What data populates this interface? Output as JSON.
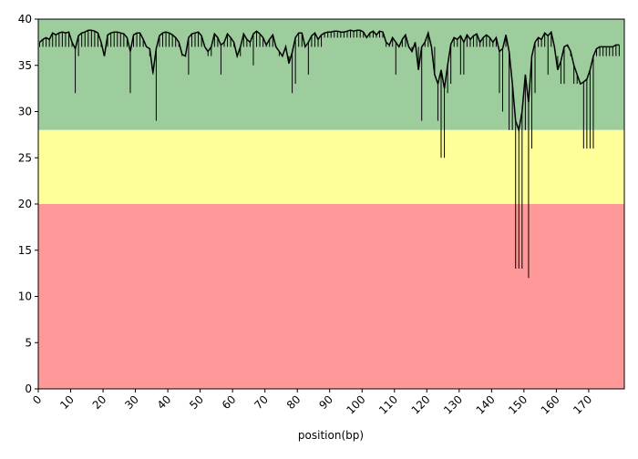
{
  "chart_data": {
    "type": "quality",
    "xlabel": "position(bp)",
    "xlim": [
      0,
      181
    ],
    "ylim": [
      0,
      40
    ],
    "xticks": [
      0,
      10,
      20,
      30,
      40,
      50,
      60,
      70,
      80,
      90,
      100,
      110,
      120,
      130,
      140,
      150,
      160,
      170
    ],
    "yticks": [
      0,
      5,
      10,
      15,
      20,
      25,
      30,
      35,
      40
    ],
    "bands": [
      {
        "from": 28,
        "to": 40,
        "color": "#9dcc9d"
      },
      {
        "from": 20,
        "to": 28,
        "color": "#ffff99"
      },
      {
        "from": 0,
        "to": 20,
        "color": "#ff9999"
      }
    ],
    "x": [
      0,
      1,
      2,
      3,
      4,
      5,
      6,
      7,
      8,
      9,
      10,
      11,
      12,
      13,
      14,
      15,
      16,
      17,
      18,
      19,
      20,
      21,
      22,
      23,
      24,
      25,
      26,
      27,
      28,
      29,
      30,
      31,
      32,
      33,
      34,
      35,
      36,
      37,
      38,
      39,
      40,
      41,
      42,
      43,
      44,
      45,
      46,
      47,
      48,
      49,
      50,
      51,
      52,
      53,
      54,
      55,
      56,
      57,
      58,
      59,
      60,
      61,
      62,
      63,
      64,
      65,
      66,
      67,
      68,
      69,
      70,
      71,
      72,
      73,
      74,
      75,
      76,
      77,
      78,
      79,
      80,
      81,
      82,
      83,
      84,
      85,
      86,
      87,
      88,
      89,
      90,
      91,
      92,
      93,
      94,
      95,
      96,
      97,
      98,
      99,
      100,
      101,
      102,
      103,
      104,
      105,
      106,
      107,
      108,
      109,
      110,
      111,
      112,
      113,
      114,
      115,
      116,
      117,
      118,
      119,
      120,
      121,
      122,
      123,
      124,
      125,
      126,
      127,
      128,
      129,
      130,
      131,
      132,
      133,
      134,
      135,
      136,
      137,
      138,
      139,
      140,
      141,
      142,
      143,
      144,
      145,
      146,
      147,
      148,
      149,
      150,
      151,
      152,
      153,
      154,
      155,
      156,
      157,
      158,
      159,
      160,
      161,
      162,
      163,
      164,
      165,
      166,
      167,
      168,
      169,
      170,
      171,
      172,
      173,
      174,
      175,
      176,
      177,
      178,
      179
    ],
    "mean": {
      "color": "#000000",
      "values": [
        37.5,
        37.8,
        38,
        37.8,
        38.5,
        38.3,
        38.5,
        38.6,
        38.5,
        38.6,
        37.5,
        36.8,
        38.2,
        38.5,
        38.6,
        38.8,
        38.8,
        38.7,
        38.5,
        37.5,
        36,
        38.3,
        38.5,
        38.6,
        38.6,
        38.5,
        38.4,
        38,
        36.5,
        38.3,
        38.5,
        38.5,
        37.8,
        37,
        36.8,
        34.2,
        36.8,
        38.2,
        38.5,
        38.6,
        38.5,
        38.3,
        38,
        37.5,
        36.2,
        36,
        38,
        38.4,
        38.5,
        38.6,
        38.2,
        37,
        36.5,
        37,
        38.4,
        38,
        37.2,
        37.5,
        38.4,
        38,
        37.5,
        36,
        37,
        38.4,
        37.8,
        37.5,
        38.4,
        38.7,
        38.4,
        38,
        37.2,
        37.8,
        38.3,
        37,
        36.5,
        36,
        37,
        35.2,
        36.4,
        38,
        38.5,
        38.5,
        37,
        37.5,
        38.2,
        38.5,
        37.8,
        38.3,
        38.5,
        38.6,
        38.6,
        38.7,
        38.7,
        38.6,
        38.6,
        38.7,
        38.8,
        38.7,
        38.8,
        38.8,
        38.6,
        38,
        38.5,
        38.7,
        38.3,
        38.7,
        38.6,
        37.5,
        37.2,
        38,
        37.5,
        37,
        37.8,
        38.3,
        37,
        36.5,
        37.5,
        34.5,
        37,
        37.5,
        38.5,
        37,
        34,
        33,
        34.5,
        32.5,
        35,
        37.3,
        38,
        37.8,
        38.2,
        37.5,
        38.3,
        37.8,
        38.2,
        38.4,
        37.5,
        38,
        38.3,
        38,
        37.5,
        38,
        36.5,
        36.8,
        38.3,
        36.5,
        33,
        29,
        28,
        30,
        34,
        31,
        36,
        37.5,
        38,
        37.8,
        38.5,
        38.2,
        38.6,
        37,
        34.5,
        35.5,
        37,
        37.2,
        36.5,
        35,
        34,
        33,
        33.2,
        33.5,
        34.5,
        36,
        36.8,
        37,
        37,
        37,
        37,
        37,
        37.2,
        37.2
      ]
    },
    "low": {
      "color": "#000000",
      "values": [
        37,
        37,
        37,
        37,
        37,
        37,
        37,
        37,
        37,
        37,
        37,
        32,
        36,
        37,
        37,
        37,
        37,
        37,
        37,
        37,
        36,
        37,
        37,
        37,
        37,
        37,
        37,
        37,
        32,
        37,
        37,
        37,
        37,
        37,
        36,
        34,
        29,
        37,
        37,
        37,
        37,
        37,
        37,
        37,
        36,
        36,
        34,
        37,
        37,
        37,
        37,
        37,
        36,
        36,
        37,
        37,
        34,
        37,
        37,
        37,
        37,
        36,
        36,
        37,
        37,
        37,
        35,
        37,
        37,
        37,
        37,
        37,
        37,
        37,
        36,
        36,
        37,
        36,
        32,
        33,
        37,
        37,
        37,
        34,
        37,
        37,
        37,
        37,
        38,
        38,
        38,
        38,
        38,
        38,
        38,
        38,
        38,
        38,
        38,
        38,
        38,
        38,
        38,
        38,
        38,
        38,
        38,
        37,
        37,
        37,
        34,
        37,
        37,
        37,
        37,
        37,
        37,
        37,
        29,
        37,
        37,
        37,
        37,
        29,
        25,
        25,
        32,
        33,
        37,
        37,
        34,
        34,
        37,
        37,
        37,
        37,
        37,
        37,
        37,
        37,
        37,
        37,
        32,
        30,
        37,
        28,
        28,
        13,
        13,
        13,
        28,
        12,
        26,
        32,
        37,
        37,
        37,
        34,
        37,
        37,
        36,
        33,
        33,
        37,
        36,
        33,
        33,
        33,
        26,
        26,
        26,
        26,
        36,
        36,
        36,
        36,
        36,
        36,
        36,
        36
      ]
    }
  }
}
